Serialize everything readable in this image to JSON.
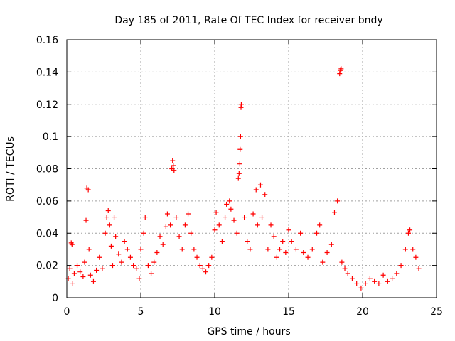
{
  "chart_data": {
    "type": "scatter",
    "title": "Day 185 of 2011, Rate Of TEC Index for receiver bndy",
    "xlabel": "GPS time / hours",
    "ylabel": "ROTI / TECUs",
    "xlim": [
      0,
      25
    ],
    "ylim": [
      0,
      0.16
    ],
    "xticks": [
      0,
      5,
      10,
      15,
      20,
      25
    ],
    "yticks": [
      0,
      0.02,
      0.04,
      0.06,
      0.08,
      0.1,
      0.12,
      0.14,
      0.16
    ],
    "xtick_labels": [
      "0",
      "5",
      "10",
      "15",
      "20",
      "25"
    ],
    "ytick_labels": [
      "0",
      "0.02",
      "0.04",
      "0.06",
      "0.08",
      "0.1",
      "0.12",
      "0.14",
      "0.16"
    ],
    "grid": true,
    "marker": "+",
    "series": [
      {
        "name": "ROTI",
        "color": "#ff0000",
        "points": [
          [
            0.1,
            0.012
          ],
          [
            0.2,
            0.018
          ],
          [
            0.3,
            0.034
          ],
          [
            0.35,
            0.033
          ],
          [
            0.4,
            0.009
          ],
          [
            0.5,
            0.015
          ],
          [
            0.7,
            0.02
          ],
          [
            0.9,
            0.016
          ],
          [
            1.1,
            0.013
          ],
          [
            1.2,
            0.022
          ],
          [
            1.3,
            0.048
          ],
          [
            1.35,
            0.068
          ],
          [
            1.45,
            0.067
          ],
          [
            1.5,
            0.03
          ],
          [
            1.6,
            0.014
          ],
          [
            1.8,
            0.01
          ],
          [
            2.0,
            0.017
          ],
          [
            2.2,
            0.025
          ],
          [
            2.4,
            0.018
          ],
          [
            2.6,
            0.04
          ],
          [
            2.7,
            0.05
          ],
          [
            2.8,
            0.054
          ],
          [
            2.9,
            0.045
          ],
          [
            3.0,
            0.032
          ],
          [
            3.1,
            0.02
          ],
          [
            3.2,
            0.05
          ],
          [
            3.3,
            0.038
          ],
          [
            3.5,
            0.027
          ],
          [
            3.7,
            0.022
          ],
          [
            3.9,
            0.035
          ],
          [
            4.1,
            0.03
          ],
          [
            4.3,
            0.025
          ],
          [
            4.5,
            0.02
          ],
          [
            4.7,
            0.018
          ],
          [
            4.9,
            0.012
          ],
          [
            5.0,
            0.03
          ],
          [
            5.2,
            0.04
          ],
          [
            5.3,
            0.05
          ],
          [
            5.5,
            0.02
          ],
          [
            5.7,
            0.015
          ],
          [
            5.9,
            0.022
          ],
          [
            6.1,
            0.028
          ],
          [
            6.3,
            0.038
          ],
          [
            6.5,
            0.033
          ],
          [
            6.7,
            0.044
          ],
          [
            6.8,
            0.052
          ],
          [
            7.0,
            0.045
          ],
          [
            7.1,
            0.08
          ],
          [
            7.15,
            0.085
          ],
          [
            7.2,
            0.082
          ],
          [
            7.25,
            0.079
          ],
          [
            7.4,
            0.05
          ],
          [
            7.6,
            0.038
          ],
          [
            7.8,
            0.03
          ],
          [
            8.0,
            0.045
          ],
          [
            8.2,
            0.052
          ],
          [
            8.4,
            0.04
          ],
          [
            8.6,
            0.03
          ],
          [
            8.8,
            0.025
          ],
          [
            9.0,
            0.02
          ],
          [
            9.2,
            0.018
          ],
          [
            9.4,
            0.016
          ],
          [
            9.6,
            0.02
          ],
          [
            9.8,
            0.025
          ],
          [
            10.0,
            0.042
          ],
          [
            10.1,
            0.053
          ],
          [
            10.3,
            0.045
          ],
          [
            10.5,
            0.035
          ],
          [
            10.7,
            0.05
          ],
          [
            10.8,
            0.058
          ],
          [
            11.0,
            0.06
          ],
          [
            11.1,
            0.055
          ],
          [
            11.3,
            0.048
          ],
          [
            11.5,
            0.04
          ],
          [
            11.6,
            0.074
          ],
          [
            11.65,
            0.077
          ],
          [
            11.7,
            0.083
          ],
          [
            11.72,
            0.092
          ],
          [
            11.75,
            0.1
          ],
          [
            11.78,
            0.118
          ],
          [
            11.8,
            0.12
          ],
          [
            12.0,
            0.05
          ],
          [
            12.2,
            0.035
          ],
          [
            12.4,
            0.03
          ],
          [
            12.6,
            0.052
          ],
          [
            12.8,
            0.067
          ],
          [
            12.9,
            0.045
          ],
          [
            13.1,
            0.07
          ],
          [
            13.2,
            0.05
          ],
          [
            13.4,
            0.064
          ],
          [
            13.6,
            0.03
          ],
          [
            13.8,
            0.045
          ],
          [
            14.0,
            0.038
          ],
          [
            14.2,
            0.025
          ],
          [
            14.4,
            0.03
          ],
          [
            14.6,
            0.035
          ],
          [
            14.8,
            0.028
          ],
          [
            15.0,
            0.042
          ],
          [
            15.2,
            0.035
          ],
          [
            15.5,
            0.03
          ],
          [
            15.8,
            0.04
          ],
          [
            16.0,
            0.028
          ],
          [
            16.3,
            0.025
          ],
          [
            16.6,
            0.03
          ],
          [
            16.9,
            0.04
          ],
          [
            17.1,
            0.045
          ],
          [
            17.3,
            0.022
          ],
          [
            17.6,
            0.028
          ],
          [
            17.9,
            0.033
          ],
          [
            18.1,
            0.053
          ],
          [
            18.3,
            0.06
          ],
          [
            18.45,
            0.139
          ],
          [
            18.5,
            0.141
          ],
          [
            18.55,
            0.142
          ],
          [
            18.6,
            0.022
          ],
          [
            18.8,
            0.018
          ],
          [
            19.0,
            0.015
          ],
          [
            19.3,
            0.012
          ],
          [
            19.6,
            0.009
          ],
          [
            19.9,
            0.006
          ],
          [
            20.2,
            0.009
          ],
          [
            20.5,
            0.012
          ],
          [
            20.8,
            0.01
          ],
          [
            21.1,
            0.009
          ],
          [
            21.4,
            0.014
          ],
          [
            21.7,
            0.01
          ],
          [
            22.0,
            0.012
          ],
          [
            22.3,
            0.015
          ],
          [
            22.6,
            0.02
          ],
          [
            22.9,
            0.03
          ],
          [
            23.1,
            0.04
          ],
          [
            23.2,
            0.042
          ],
          [
            23.4,
            0.03
          ],
          [
            23.6,
            0.025
          ],
          [
            23.8,
            0.018
          ]
        ]
      }
    ]
  }
}
